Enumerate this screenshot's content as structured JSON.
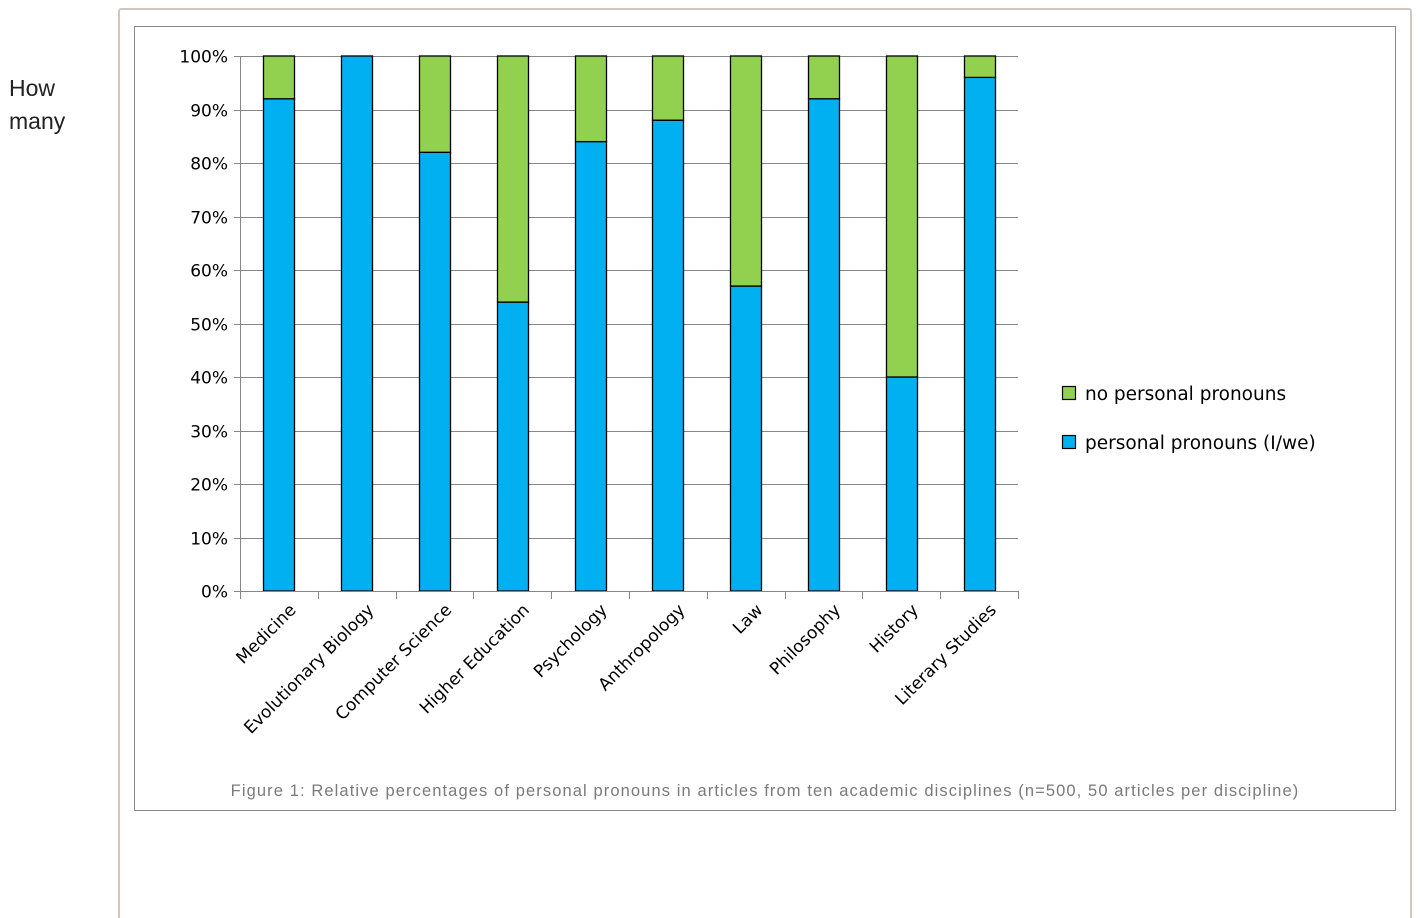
{
  "side_text": "How many",
  "caption": "Figure 1: Relative percentages of personal pronouns in articles from ten academic disciplines (n=500, 50 articles per discipline)",
  "colors": {
    "no_pronouns": "#92d050",
    "pronouns": "#00b0f0"
  },
  "chart_data": {
    "type": "bar",
    "stacked": true,
    "categories": [
      "Medicine",
      "Evolutionary Biology",
      "Computer Science",
      "Higher Education",
      "Psychology",
      "Anthropology",
      "Law",
      "Philosophy",
      "History",
      "Literary Studies"
    ],
    "series": [
      {
        "name": "personal pronouns (I/we)",
        "color": "#00b0f0",
        "values": [
          92,
          100,
          82,
          54,
          84,
          88,
          57,
          92,
          40,
          96
        ]
      },
      {
        "name": "no personal pronouns",
        "color": "#92d050",
        "values": [
          8,
          0,
          18,
          46,
          16,
          12,
          43,
          8,
          60,
          4
        ]
      }
    ],
    "yticks": [
      "0%",
      "10%",
      "20%",
      "30%",
      "40%",
      "50%",
      "60%",
      "70%",
      "80%",
      "90%",
      "100%"
    ],
    "ylim": [
      0,
      100
    ],
    "grid": true,
    "legend": [
      "no personal pronouns",
      "personal pronouns (I/we)"
    ],
    "legend_position": "right"
  }
}
